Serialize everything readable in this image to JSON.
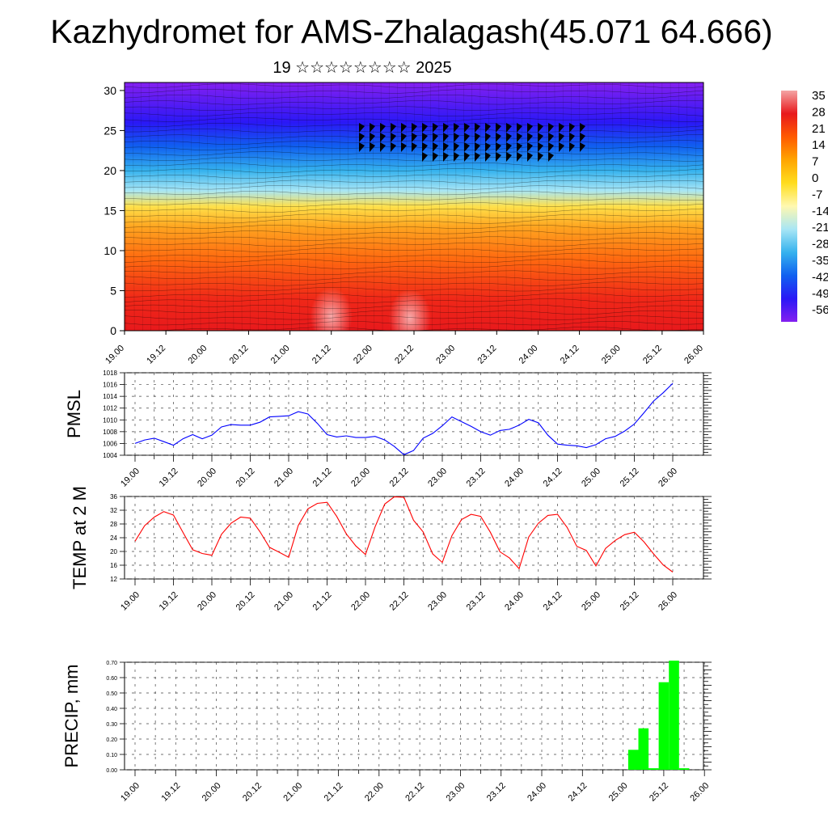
{
  "title": "Kazhydromet for AMS-Zhalagash(45.071 64.666)",
  "subtitle": "19 ☆☆☆☆☆☆☆☆ 2025",
  "time_labels": [
    "19.00",
    "19.12",
    "20.00",
    "20.12",
    "21.00",
    "21.12",
    "22.00",
    "22.12",
    "23.00",
    "23.12",
    "24.00",
    "24.12",
    "25.00",
    "25.12",
    "26.00"
  ],
  "colorbar": {
    "labels": [
      "35",
      "28",
      "21",
      "14",
      "7",
      "0",
      "-7",
      "-14",
      "-21",
      "-28",
      "-35",
      "-42",
      "-49",
      "-56"
    ],
    "stops": [
      "#f4a4a4",
      "#e8191c",
      "#ff5a00",
      "#ffa500",
      "#ffdd1e",
      "#fff8b0",
      "#a8e6f5",
      "#35b2ee",
      "#1060f0",
      "#2a18f6",
      "#8420f0"
    ]
  },
  "chart_data": [
    {
      "type": "heatmap",
      "name": "upper-air-section",
      "yticks": [
        0,
        5,
        10,
        15,
        20,
        25,
        30
      ],
      "ylim": [
        0,
        31
      ],
      "xlim": [
        0,
        14
      ],
      "layers": [
        {
          "y": 0,
          "color": "#e8191c"
        },
        {
          "y": 4,
          "color": "#f02818"
        },
        {
          "y": 9,
          "color": "#ff6a10"
        },
        {
          "y": 13,
          "color": "#ffa520"
        },
        {
          "y": 15.5,
          "color": "#ffe04a"
        },
        {
          "y": 17.5,
          "color": "#a8e6f5"
        },
        {
          "y": 20,
          "color": "#35b2ee"
        },
        {
          "y": 23,
          "color": "#1060f0"
        },
        {
          "y": 26,
          "color": "#2a18f6"
        },
        {
          "y": 31,
          "color": "#8420f0"
        }
      ],
      "warm_spots": [
        {
          "x": 5.0,
          "y": 1.8,
          "color": "#f5a3a3"
        },
        {
          "x": 6.9,
          "y": 1.6,
          "color": "#f5a3a3"
        }
      ]
    },
    {
      "type": "line",
      "ylabel": "PMSL",
      "color": "#0000ff",
      "ylim": [
        1004,
        1018
      ],
      "yticks": [
        1004,
        1006,
        1008,
        1010,
        1012,
        1014,
        1016,
        1018
      ],
      "x": [
        0,
        0.25,
        0.5,
        0.75,
        1,
        1.25,
        1.5,
        1.75,
        2,
        2.25,
        2.5,
        2.75,
        3,
        3.25,
        3.5,
        3.75,
        4,
        4.25,
        4.5,
        4.75,
        5,
        5.25,
        5.5,
        5.75,
        6,
        6.25,
        6.5,
        6.75,
        7,
        7.25,
        7.5,
        7.75,
        8,
        8.25,
        8.5,
        8.75,
        9,
        9.25,
        9.5,
        9.75,
        10,
        10.25,
        10.5,
        10.75,
        11,
        11.25,
        11.5,
        11.75,
        12,
        12.25,
        12.5,
        12.75,
        13,
        13.25,
        13.5,
        13.75,
        14
      ],
      "y": [
        1006,
        1006.6,
        1006.9,
        1006.3,
        1005.7,
        1006.8,
        1007.5,
        1006.8,
        1007.4,
        1008.8,
        1009.2,
        1009.1,
        1009.1,
        1009.6,
        1010.5,
        1010.6,
        1010.7,
        1011.4,
        1011,
        1009.4,
        1007.5,
        1007.1,
        1007.3,
        1007,
        1007,
        1007.2,
        1006.6,
        1005.5,
        1004.1,
        1004.8,
        1006.9,
        1007.7,
        1009,
        1010.5,
        1009.7,
        1008.9,
        1008,
        1007.4,
        1008.2,
        1008.4,
        1009.1,
        1010.1,
        1009.5,
        1007.4,
        1005.9,
        1005.7,
        1005.6,
        1005.3,
        1005.8,
        1006.8,
        1007.2,
        1008.1,
        1009.3,
        1011.2,
        1013.2,
        1014.6,
        1016.2
      ]
    },
    {
      "type": "line",
      "ylabel": "TEMP at 2 M",
      "color": "#ff0000",
      "ylim": [
        12,
        36
      ],
      "yticks": [
        12,
        16,
        20,
        24,
        28,
        32,
        36
      ],
      "x": [
        0,
        0.25,
        0.5,
        0.75,
        1,
        1.25,
        1.5,
        1.75,
        2,
        2.25,
        2.5,
        2.75,
        3,
        3.25,
        3.5,
        3.75,
        4,
        4.25,
        4.5,
        4.75,
        5,
        5.25,
        5.5,
        5.75,
        6,
        6.25,
        6.5,
        6.75,
        7,
        7.25,
        7.5,
        7.75,
        8,
        8.25,
        8.5,
        8.75,
        9,
        9.25,
        9.5,
        9.75,
        10,
        10.25,
        10.5,
        10.75,
        11,
        11.25,
        11.5,
        11.75,
        12,
        12.25,
        12.5,
        12.75,
        13,
        13.25,
        13.5,
        13.75,
        14
      ],
      "y": [
        23,
        27.5,
        30,
        31.6,
        30.6,
        25.5,
        20.5,
        19.4,
        18.9,
        25,
        28.2,
        30,
        29.7,
        25.8,
        21.2,
        19.8,
        18.3,
        27.6,
        32.4,
        34,
        34.3,
        30.2,
        25.1,
        21.6,
        19.1,
        27.2,
        33.8,
        35.9,
        35.8,
        29.1,
        25.7,
        19.3,
        16.8,
        24.6,
        29.3,
        30.8,
        30.2,
        25.6,
        19.9,
        18.1,
        15,
        24.2,
        28.2,
        30.5,
        30.8,
        27,
        21.5,
        20.3,
        15.8,
        20.9,
        23.2,
        24.9,
        25.6,
        22.8,
        19.3,
        16.1,
        14
      ]
    },
    {
      "type": "bar",
      "ylabel": "PRECIP, mm",
      "color": "#00ff00",
      "ylim": [
        0,
        0.7
      ],
      "yticks": [
        "0.00",
        "0.10",
        "0.20",
        "0.30",
        "0.40",
        "0.50",
        "0.60",
        "0.70"
      ],
      "x": [
        12.25,
        12.5,
        12.75,
        13.0,
        13.25,
        13.5
      ],
      "values": [
        0.13,
        0.27,
        0.01,
        0.57,
        0.72,
        0.01
      ]
    }
  ]
}
